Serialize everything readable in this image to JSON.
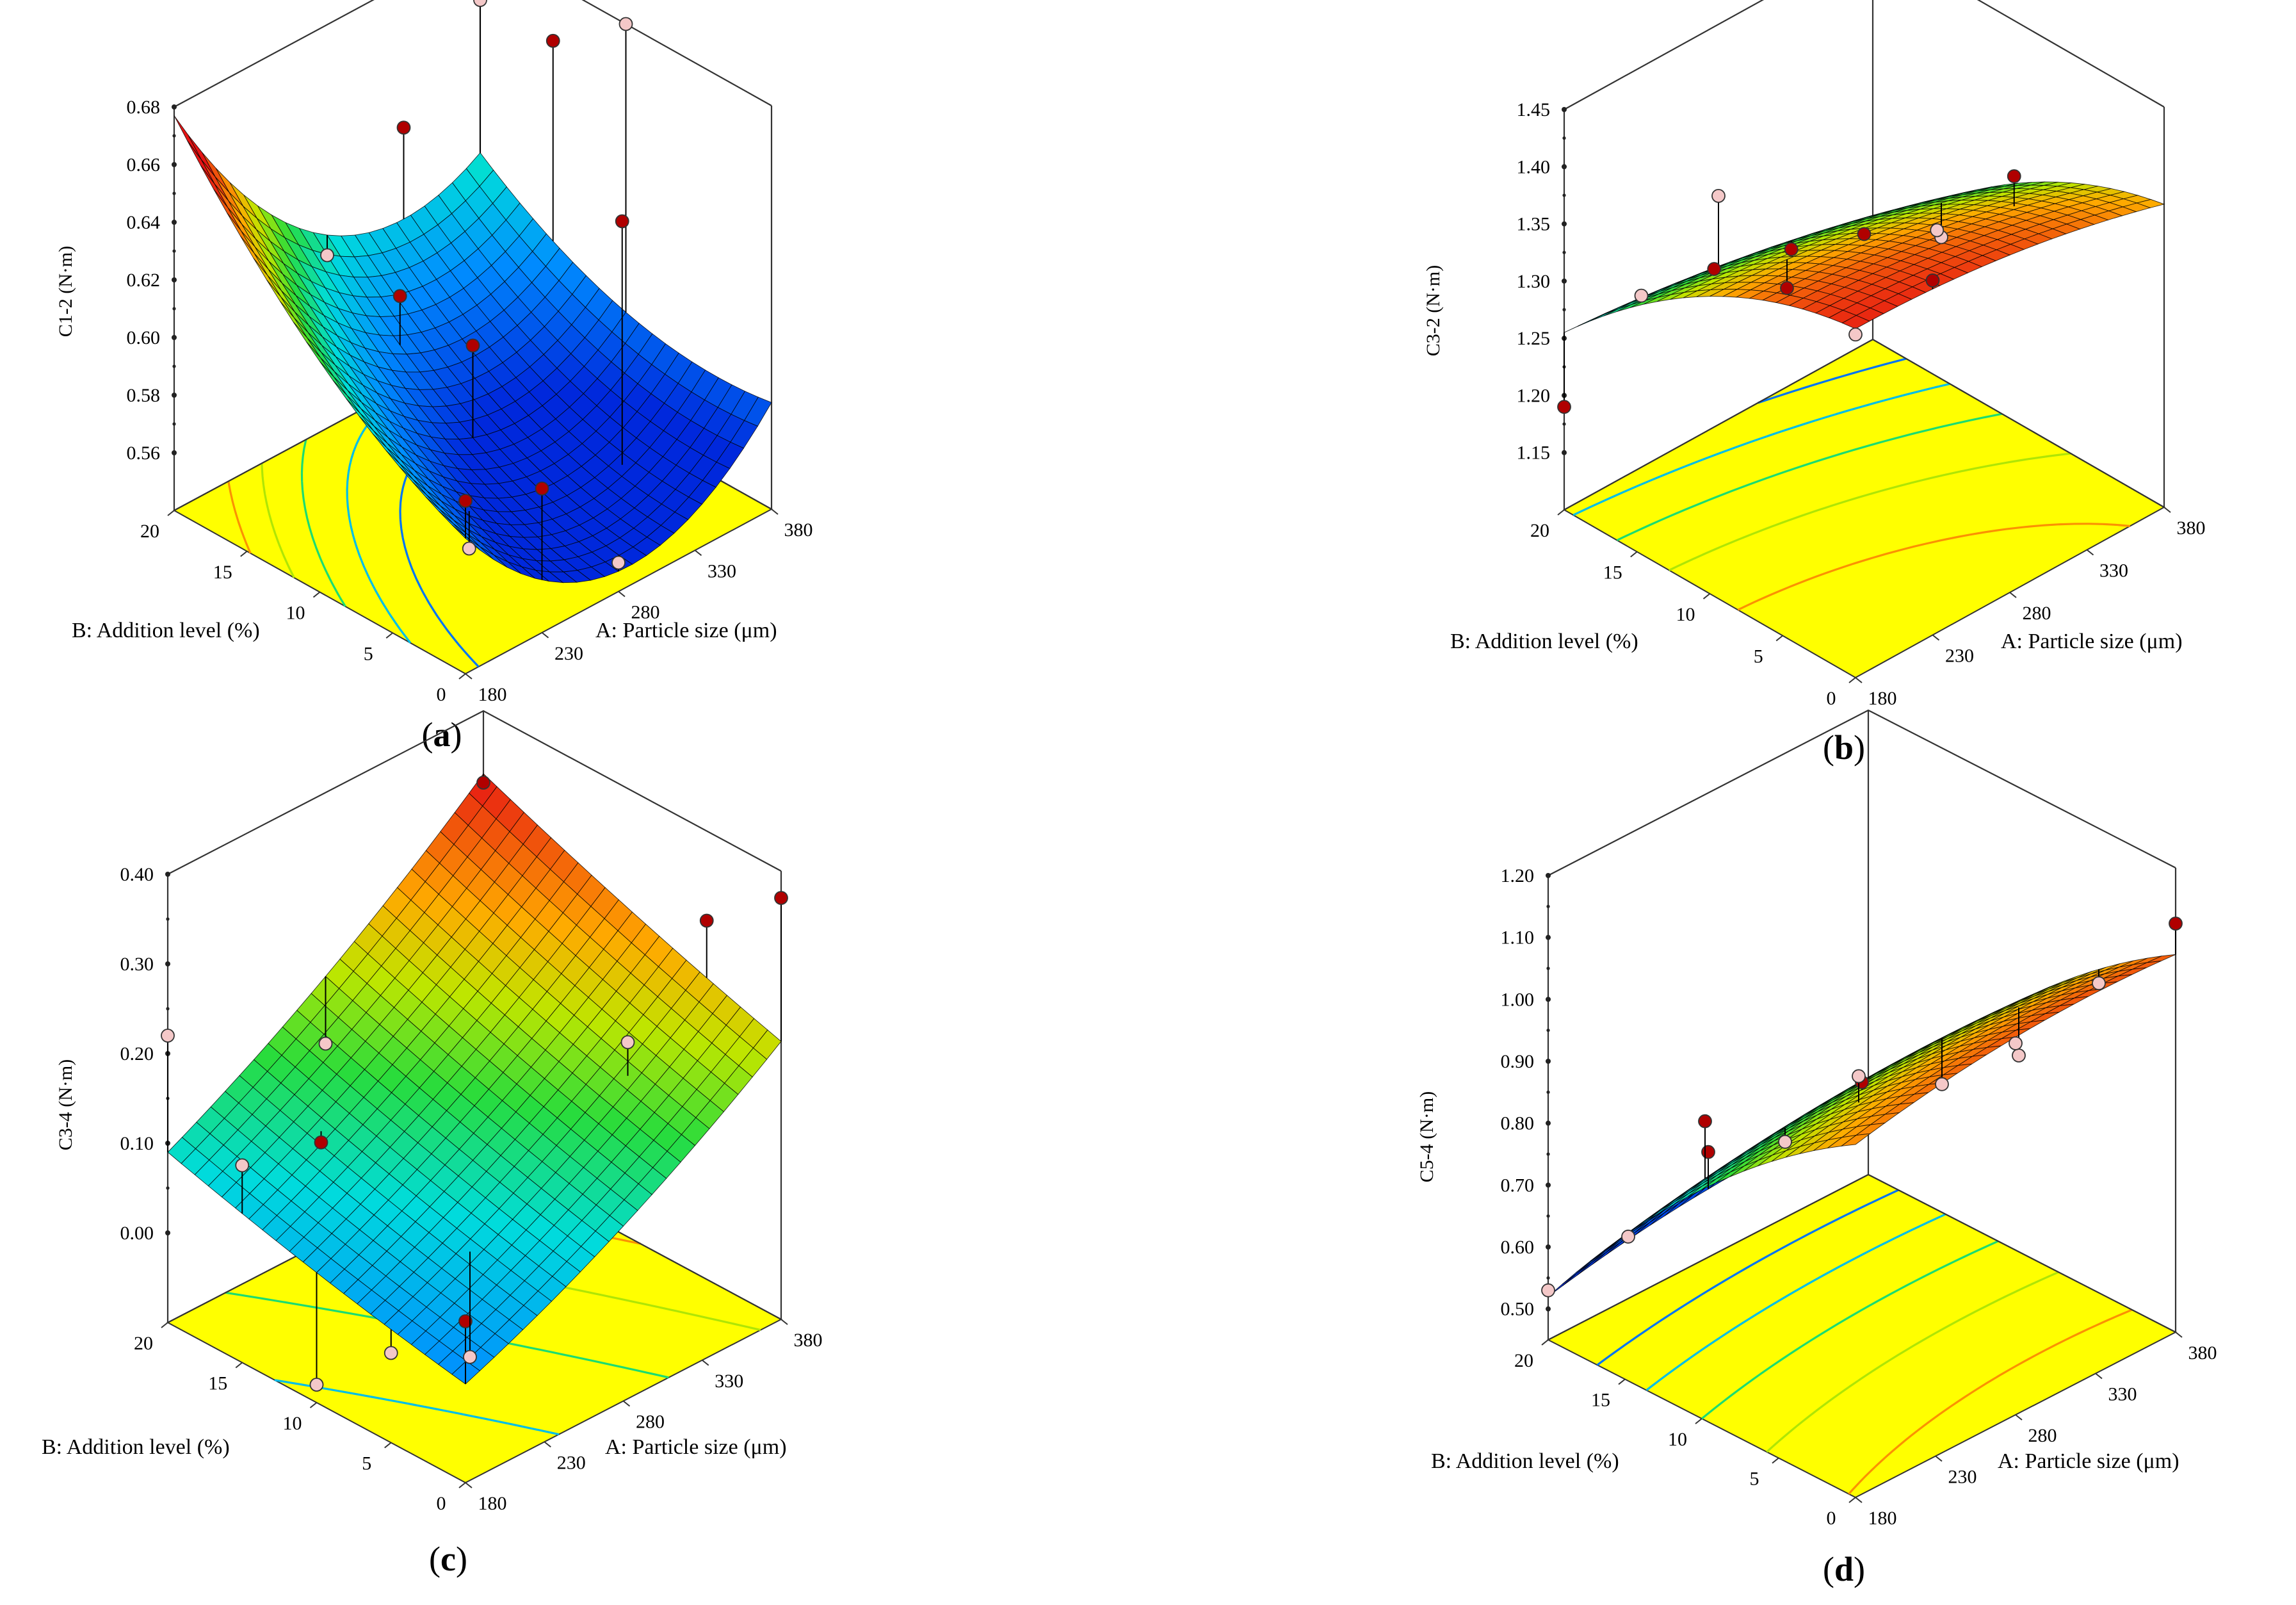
{
  "figure": {
    "caption_labels": [
      "(a)",
      "(b)",
      "(c)",
      "(d)"
    ]
  },
  "chart_data": [
    {
      "id": "a",
      "type": "surface3d",
      "panel_label": "a",
      "zlabel": "C1-2 (N·m)",
      "xlabel": "A: Particle size (μm)",
      "ylabel": "B: Addition level (%)",
      "x_ticks": [
        "180",
        "230",
        "280",
        "330",
        "380"
      ],
      "y_ticks": [
        "0",
        "5",
        "10",
        "15",
        "20"
      ],
      "z_ticks": [
        "0.56",
        "0.58",
        "0.60",
        "0.62",
        "0.64",
        "0.66",
        "0.68"
      ],
      "xlim": [
        180,
        380
      ],
      "ylim": [
        0,
        20
      ],
      "zlim": [
        0.54,
        0.68
      ],
      "model": {
        "a0": 0.565,
        "a": -0.02,
        "b": 0.03,
        "aa": 0.035,
        "bb": 0.012,
        "ab": -0.015
      },
      "color_range": [
        0.565,
        0.66
      ],
      "points": [
        {
          "x": 380,
          "y": 20,
          "z": 0.66,
          "above": false
        },
        {
          "x": 330,
          "y": 20,
          "z": 0.63,
          "above": true
        },
        {
          "x": 280,
          "y": 20,
          "z": 0.6,
          "above": false
        },
        {
          "x": 380,
          "y": 15,
          "z": 0.66,
          "above": true
        },
        {
          "x": 380,
          "y": 10,
          "z": 0.68,
          "above": false
        },
        {
          "x": 280,
          "y": 10,
          "z": 0.597,
          "above": true
        },
        {
          "x": 330,
          "y": 5,
          "z": 0.64,
          "above": true
        },
        {
          "x": 280,
          "y": 15,
          "z": 0.6,
          "above": true
        },
        {
          "x": 180,
          "y": 0,
          "z": 0.6,
          "above": true
        },
        {
          "x": 230,
          "y": 0,
          "z": 0.59,
          "above": true
        },
        {
          "x": 280,
          "y": 0,
          "z": 0.55,
          "above": false
        },
        {
          "x": 230,
          "y": 5,
          "z": 0.555,
          "above": false
        }
      ]
    },
    {
      "id": "b",
      "type": "surface3d",
      "panel_label": "b",
      "zlabel": "C3-2 (N·m)",
      "xlabel": "A: Particle size (μm)",
      "ylabel": "B: Addition level (%)",
      "x_ticks": [
        "180",
        "230",
        "280",
        "330",
        "380"
      ],
      "y_ticks": [
        "0",
        "5",
        "10",
        "15",
        "20"
      ],
      "z_ticks": [
        "1.15",
        "1.20",
        "1.25",
        "1.30",
        "1.35",
        "1.40",
        "1.45"
      ],
      "xlim": [
        180,
        380
      ],
      "ylim": [
        0,
        20
      ],
      "zlim": [
        1.1,
        1.45
      ],
      "model": {
        "a0": 1.345,
        "a": -0.025,
        "b": -0.08,
        "aa": -0.01,
        "bb": -0.03,
        "ab": -0.005
      },
      "color_range": [
        1.19,
        1.41
      ],
      "points": [
        {
          "x": 180,
          "y": 20,
          "z": 1.19,
          "above": true
        },
        {
          "x": 230,
          "y": 20,
          "z": 1.25,
          "above": false
        },
        {
          "x": 280,
          "y": 20,
          "z": 1.3,
          "above": false
        },
        {
          "x": 230,
          "y": 15,
          "z": 1.31,
          "above": true
        },
        {
          "x": 280,
          "y": 15,
          "z": 1.29,
          "above": true
        },
        {
          "x": 280,
          "y": 10,
          "z": 1.34,
          "above": true
        },
        {
          "x": 230,
          "y": 10,
          "z": 1.33,
          "above": true
        },
        {
          "x": 330,
          "y": 10,
          "z": 1.3,
          "above": false
        },
        {
          "x": 330,
          "y": 5,
          "z": 1.39,
          "above": true
        },
        {
          "x": 280,
          "y": 5,
          "z": 1.38,
          "above": false
        },
        {
          "x": 230,
          "y": 0,
          "z": 1.41,
          "above": true
        },
        {
          "x": 180,
          "y": 0,
          "z": 1.4,
          "above": false
        }
      ]
    },
    {
      "id": "c",
      "type": "surface3d",
      "panel_label": "c",
      "zlabel": "C3-4 (N·m)",
      "xlabel": "A: Particle size (μm)",
      "ylabel": "B: Addition level (%)",
      "x_ticks": [
        "180",
        "230",
        "280",
        "330",
        "380"
      ],
      "y_ticks": [
        "0",
        "5",
        "10",
        "15",
        "20"
      ],
      "z_ticks": [
        "0.00",
        "0.10",
        "0.20",
        "0.30",
        "0.40"
      ],
      "xlim": [
        180,
        380
      ],
      "ylim": [
        0,
        20
      ],
      "zlim": [
        -0.1,
        0.4
      ],
      "model": {
        "a0": 0.14,
        "a": 0.11,
        "b": 0.05,
        "aa": 0.015,
        "bb": 0.005,
        "ab": 0.01
      },
      "color_range": [
        -0.08,
        0.33
      ],
      "points": [
        {
          "x": 380,
          "y": 0,
          "z": 0.37,
          "above": true
        },
        {
          "x": 380,
          "y": 5,
          "z": 0.3,
          "above": true
        },
        {
          "x": 330,
          "y": 5,
          "z": 0.21,
          "above": false
        },
        {
          "x": 180,
          "y": 20,
          "z": 0.22,
          "above": false
        },
        {
          "x": 180,
          "y": 15,
          "z": 0.12,
          "above": false
        },
        {
          "x": 230,
          "y": 15,
          "z": 0.1,
          "above": true
        },
        {
          "x": 180,
          "y": 5,
          "z": 0.0,
          "above": false
        },
        {
          "x": 180,
          "y": 0,
          "z": 0.08,
          "above": true
        },
        {
          "x": 230,
          "y": 5,
          "z": -0.05,
          "above": false
        },
        {
          "x": 180,
          "y": 10,
          "z": -0.08,
          "above": false
        },
        {
          "x": 280,
          "y": 20,
          "z": 0.12,
          "above": false
        },
        {
          "x": 380,
          "y": 20,
          "z": 0.32,
          "above": true
        }
      ]
    },
    {
      "id": "d",
      "type": "surface3d",
      "panel_label": "d",
      "zlabel": "C5-4 (N·m)",
      "xlabel": "A: Particle size (μm)",
      "ylabel": "B: Addition level (%)",
      "x_ticks": [
        "180",
        "230",
        "280",
        "330",
        "380"
      ],
      "y_ticks": [
        "0",
        "5",
        "10",
        "15",
        "20"
      ],
      "z_ticks": [
        "0.50",
        "0.60",
        "0.70",
        "0.80",
        "0.90",
        "1.00",
        "1.10",
        "1.20"
      ],
      "xlim": [
        180,
        380
      ],
      "ylim": [
        0,
        20
      ],
      "zlim": [
        0.45,
        1.2
      ],
      "model": {
        "a0": 0.86,
        "a": 0.02,
        "b": -0.25,
        "aa": -0.02,
        "bb": -0.05,
        "ab": 0.0
      },
      "color_range": [
        0.53,
        1.11
      ],
      "points": [
        {
          "x": 180,
          "y": 20,
          "z": 0.53,
          "above": false
        },
        {
          "x": 230,
          "y": 20,
          "z": 0.55,
          "above": false
        },
        {
          "x": 280,
          "y": 20,
          "z": 0.62,
          "above": true
        },
        {
          "x": 230,
          "y": 15,
          "z": 0.8,
          "above": true
        },
        {
          "x": 280,
          "y": 15,
          "z": 0.7,
          "above": false
        },
        {
          "x": 280,
          "y": 10,
          "z": 0.86,
          "above": true
        },
        {
          "x": 330,
          "y": 10,
          "z": 0.79,
          "above": false
        },
        {
          "x": 330,
          "y": 5,
          "z": 0.9,
          "above": false
        },
        {
          "x": 380,
          "y": 5,
          "z": 0.95,
          "above": false
        },
        {
          "x": 230,
          "y": 5,
          "z": 1.0,
          "above": false
        },
        {
          "x": 280,
          "y": 0,
          "z": 1.05,
          "above": false
        },
        {
          "x": 380,
          "y": 0,
          "z": 1.11,
          "above": true
        }
      ]
    }
  ]
}
